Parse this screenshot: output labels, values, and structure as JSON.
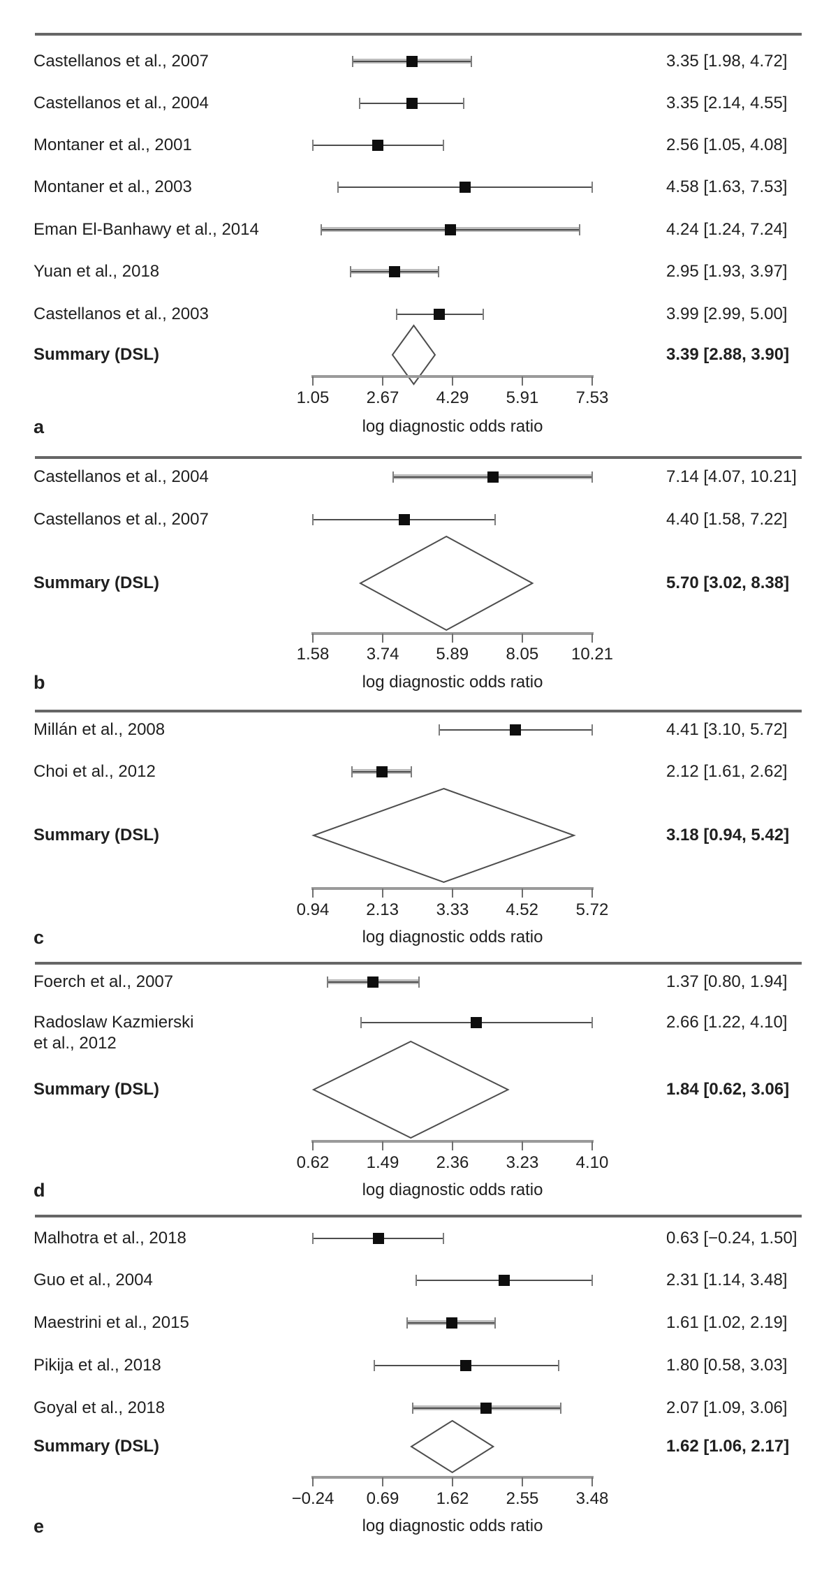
{
  "figure": {
    "xlabel": "log diagnostic odds ratio",
    "summary_label": "Summary (DSL)"
  },
  "colors": {
    "text": "#1f1f1f",
    "marker": "#0e0e0e",
    "ci_line": "#4d4d4d",
    "ci_band": "#bcbcbc",
    "ci_cap": "#7d7d7d",
    "axis_line": "#9a9a9a",
    "axis_tick": "#6e6e6e",
    "rule": "#666666",
    "diamond_stroke": "#4d4d4d",
    "diamond_fill": "#ffffff"
  },
  "chart_data": [
    {
      "type": "forest",
      "panel_letter": "a",
      "xlabel": "log diagnostic odds ratio",
      "xlim": [
        1.05,
        7.53
      ],
      "tick_values": [
        1.05,
        2.67,
        4.29,
        5.91,
        7.53
      ],
      "tick_labels": [
        "1.05",
        "2.67",
        "4.29",
        "5.91",
        "7.53"
      ],
      "studies": [
        {
          "label": "Castellanos et al., 2007",
          "mean": 3.35,
          "ci": [
            1.98,
            4.72
          ],
          "text": "3.35 [1.98, 4.72]",
          "band": true
        },
        {
          "label": "Castellanos et al., 2004",
          "mean": 3.35,
          "ci": [
            2.14,
            4.55
          ],
          "text": "3.35 [2.14, 4.55]",
          "band": false
        },
        {
          "label": "Montaner et al., 2001",
          "mean": 2.56,
          "ci": [
            1.05,
            4.08
          ],
          "text": "2.56 [1.05, 4.08]",
          "band": false
        },
        {
          "label": "Montaner et al., 2003",
          "mean": 4.58,
          "ci": [
            1.63,
            7.53
          ],
          "text": "4.58 [1.63, 7.53]",
          "band": false
        },
        {
          "label": "Eman El-Banhawy et al., 2014",
          "mean": 4.24,
          "ci": [
            1.24,
            7.24
          ],
          "text": "4.24 [1.24, 7.24]",
          "band": true
        },
        {
          "label": "Yuan et al., 2018",
          "mean": 2.95,
          "ci": [
            1.93,
            3.97
          ],
          "text": "2.95 [1.93, 3.97]",
          "band": true
        },
        {
          "label": "Castellanos et al., 2003",
          "mean": 3.99,
          "ci": [
            2.99,
            5.0
          ],
          "text": "3.99 [2.99, 5.00]",
          "band": false
        }
      ],
      "summary": {
        "label": "Summary (DSL)",
        "mean": 3.39,
        "ci": [
          2.88,
          3.9
        ],
        "text": "3.39 [2.88, 3.90]"
      }
    },
    {
      "type": "forest",
      "panel_letter": "b",
      "xlabel": "log diagnostic odds ratio",
      "xlim": [
        1.58,
        10.21
      ],
      "tick_values": [
        1.58,
        3.74,
        5.89,
        8.05,
        10.21
      ],
      "tick_labels": [
        "1.58",
        "3.74",
        "5.89",
        "8.05",
        "10.21"
      ],
      "studies": [
        {
          "label": "Castellanos et al., 2004",
          "mean": 7.14,
          "ci": [
            4.07,
            10.21
          ],
          "text": "7.14 [4.07, 10.21]",
          "band": true
        },
        {
          "label": "Castellanos et al., 2007",
          "mean": 4.4,
          "ci": [
            1.58,
            7.22
          ],
          "text": "4.40 [1.58, 7.22]",
          "band": false
        }
      ],
      "summary": {
        "label": "Summary (DSL)",
        "mean": 5.7,
        "ci": [
          3.02,
          8.38
        ],
        "text": "5.70 [3.02, 8.38]"
      }
    },
    {
      "type": "forest",
      "panel_letter": "c",
      "xlabel": "log diagnostic odds ratio",
      "xlim": [
        0.94,
        5.72
      ],
      "tick_values": [
        0.94,
        2.13,
        3.33,
        4.52,
        5.72
      ],
      "tick_labels": [
        "0.94",
        "2.13",
        "3.33",
        "4.52",
        "5.72"
      ],
      "studies": [
        {
          "label": "Millán et al., 2008",
          "mean": 4.41,
          "ci": [
            3.1,
            5.72
          ],
          "text": "4.41 [3.10, 5.72]",
          "band": false
        },
        {
          "label": "Choi et al., 2012",
          "mean": 2.12,
          "ci": [
            1.61,
            2.62
          ],
          "text": "2.12 [1.61, 2.62]",
          "band": true
        }
      ],
      "summary": {
        "label": "Summary (DSL)",
        "mean": 3.18,
        "ci": [
          0.94,
          5.42
        ],
        "text": "3.18 [0.94, 5.42]"
      }
    },
    {
      "type": "forest",
      "panel_letter": "d",
      "xlabel": "log diagnostic odds ratio",
      "xlim": [
        0.62,
        4.1
      ],
      "tick_values": [
        0.62,
        1.49,
        2.36,
        3.23,
        4.1
      ],
      "tick_labels": [
        "0.62",
        "1.49",
        "2.36",
        "3.23",
        "4.10"
      ],
      "studies": [
        {
          "label": "Foerch et al., 2007",
          "mean": 1.37,
          "ci": [
            0.8,
            1.94
          ],
          "text": "1.37 [0.80, 1.94]",
          "band": true
        },
        {
          "label": "Radoslaw Kazmierski\net al., 2012",
          "mean": 2.66,
          "ci": [
            1.22,
            4.1
          ],
          "text": "2.66 [1.22, 4.10]",
          "band": false
        }
      ],
      "summary": {
        "label": "Summary (DSL)",
        "mean": 1.84,
        "ci": [
          0.62,
          3.06
        ],
        "text": "1.84 [0.62, 3.06]"
      }
    },
    {
      "type": "forest",
      "panel_letter": "e",
      "xlabel": "log diagnostic odds ratio",
      "xlim": [
        -0.24,
        3.48
      ],
      "tick_values": [
        -0.24,
        0.69,
        1.62,
        2.55,
        3.48
      ],
      "tick_labels": [
        "−0.24",
        "0.69",
        "1.62",
        "2.55",
        "3.48"
      ],
      "studies": [
        {
          "label": "Malhotra et al., 2018",
          "mean": 0.63,
          "ci": [
            -0.24,
            1.5
          ],
          "text": "0.63 [−0.24, 1.50]",
          "band": false
        },
        {
          "label": "Guo et al., 2004",
          "mean": 2.31,
          "ci": [
            1.14,
            3.48
          ],
          "text": "2.31 [1.14, 3.48]",
          "band": false
        },
        {
          "label": "Maestrini et al., 2015",
          "mean": 1.61,
          "ci": [
            1.02,
            2.19
          ],
          "text": "1.61 [1.02, 2.19]",
          "band": true
        },
        {
          "label": "Pikija et al., 2018",
          "mean": 1.8,
          "ci": [
            0.58,
            3.03
          ],
          "text": "1.80 [0.58, 3.03]",
          "band": false
        },
        {
          "label": "Goyal et al., 2018",
          "mean": 2.07,
          "ci": [
            1.09,
            3.06
          ],
          "text": "2.07 [1.09, 3.06]",
          "band": true
        }
      ],
      "summary": {
        "label": "Summary (DSL)",
        "mean": 1.62,
        "ci": [
          1.06,
          2.17
        ],
        "text": "1.62 [1.06, 2.17]"
      }
    }
  ]
}
